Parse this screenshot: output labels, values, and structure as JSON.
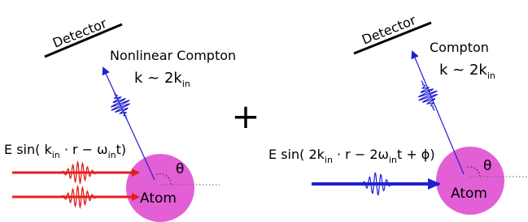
{
  "left": {
    "detector": "Detector",
    "label": "Nonlinear Compton",
    "k": [
      "k ~ 2k",
      "in"
    ],
    "field": [
      "E sin( k",
      "in",
      " · r − ω",
      "in",
      "t)"
    ],
    "angle": "θ",
    "atom": "Atom"
  },
  "plus": "+",
  "right": {
    "detector": "Detector",
    "label": "Compton",
    "k": [
      "k ~ 2k",
      "in"
    ],
    "field": [
      "E sin( 2k",
      "in",
      " · r − 2ω",
      "in",
      "t + ϕ)"
    ],
    "angle": "θ",
    "atom": "Atom"
  }
}
